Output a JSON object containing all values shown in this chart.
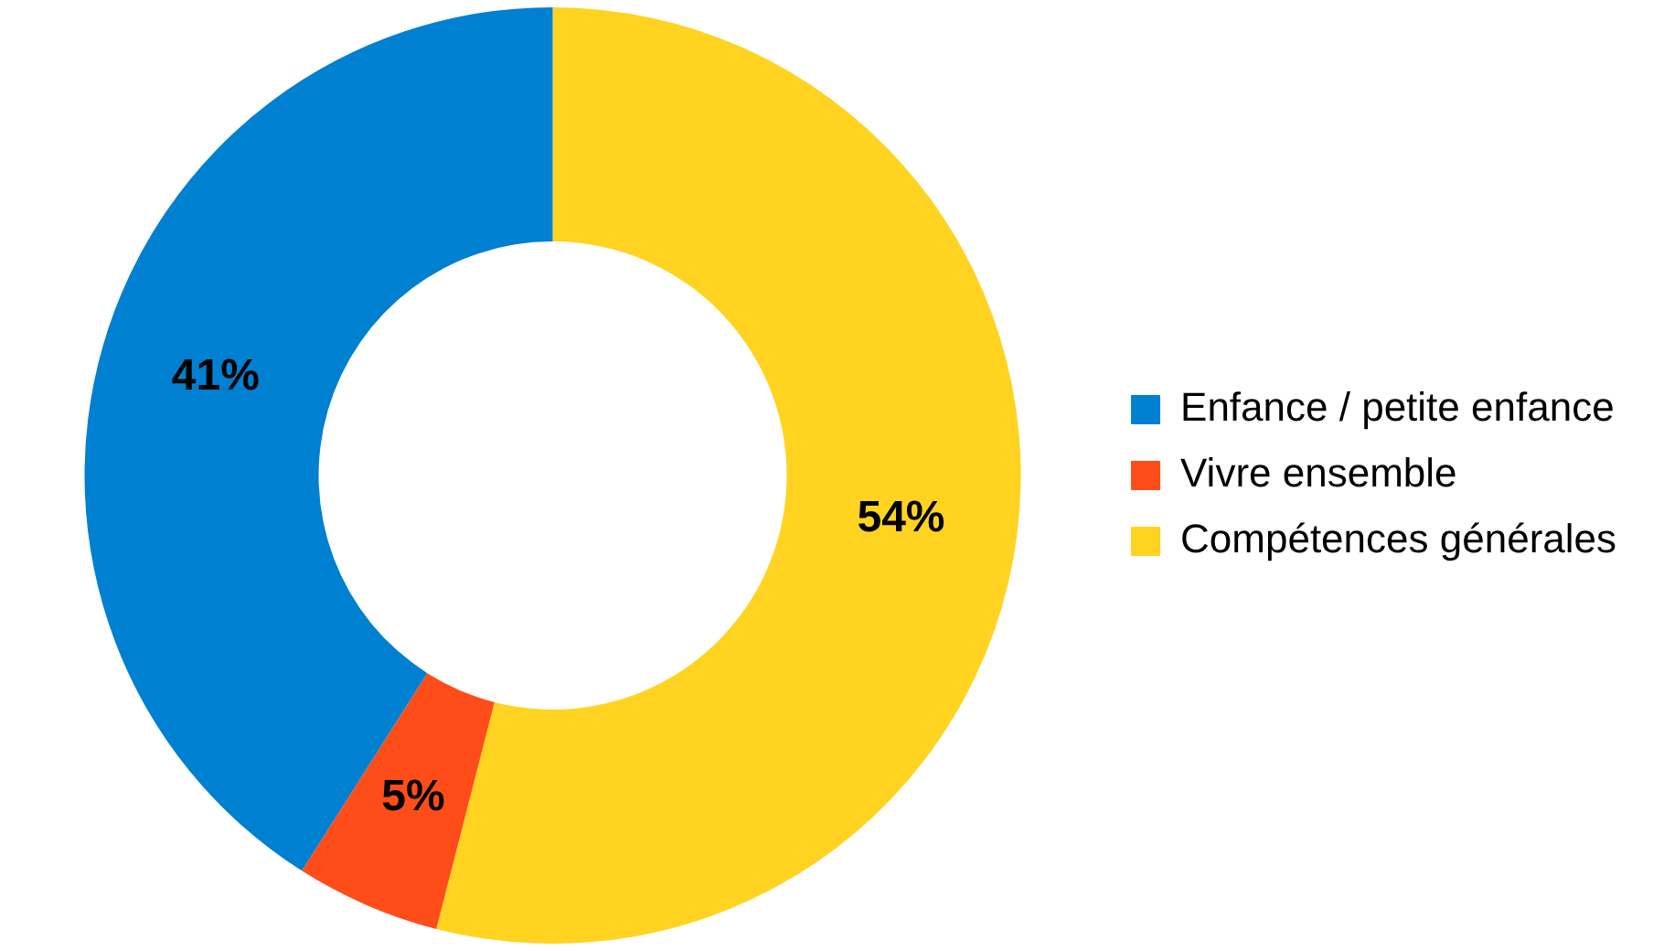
{
  "chart_data": {
    "type": "donut",
    "categories": [
      "Enfance / petite enfance",
      "Vivre ensemble",
      "Compétences générales"
    ],
    "values": [
      41,
      5,
      54
    ],
    "colors": [
      "#0080d0",
      "#ff4d1a",
      "#ffd320"
    ],
    "value_labels": [
      "41%",
      "5%",
      "54%"
    ],
    "legend": "right"
  }
}
